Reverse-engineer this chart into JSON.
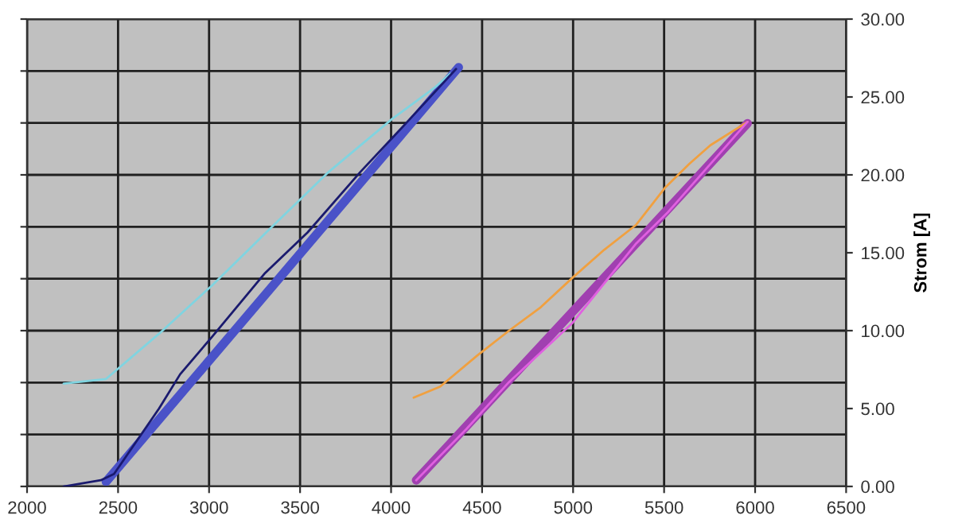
{
  "chart_data": {
    "type": "line",
    "ylabel": "Strom [A]",
    "xlim": [
      2000,
      6500
    ],
    "xticks": [
      2000,
      2500,
      3000,
      3500,
      4000,
      4500,
      5000,
      5500,
      6000,
      6500
    ],
    "ylim": [
      0,
      30
    ],
    "yticks": [
      {
        "value": 0,
        "label": "0.00"
      },
      {
        "value": 5,
        "label": "5.00"
      },
      {
        "value": 10,
        "label": "10.00"
      },
      {
        "value": 15,
        "label": "15.00"
      },
      {
        "value": 20,
        "label": "20.00"
      },
      {
        "value": 25,
        "label": "25.00"
      },
      {
        "value": 30,
        "label": "30.00"
      }
    ],
    "grid": true,
    "marker": "none",
    "line_style": "solid",
    "series": [
      {
        "color": "#80d4e0",
        "x": [
          2201,
          2434,
          2725,
          3016,
          3366,
          3658,
          4007,
          4240,
          4325
        ],
        "values": [
          6.6,
          6.9,
          9.8,
          12.9,
          16.9,
          20.2,
          23.6,
          25.6,
          26.5
        ]
      },
      {
        "color": "#1a1a6e",
        "x": [
          2201,
          2405,
          2478,
          2725,
          2841,
          3016,
          3308,
          3541,
          3832,
          4065,
          4357
        ],
        "values": [
          0,
          0.4,
          0.8,
          5.0,
          7.2,
          9.6,
          13.7,
          16.3,
          20.2,
          23.1,
          26.8
        ]
      },
      {
        "color": "#4a52c8",
        "x": [
          2434,
          4371
        ],
        "values": [
          0.3,
          26.9
        ]
      },
      {
        "color": "#f0a040",
        "x": [
          4124,
          4269,
          4473,
          4648,
          4822,
          4997,
          5172,
          5347,
          5507,
          5638,
          5754,
          5958
        ],
        "values": [
          5.7,
          6.4,
          8.4,
          10.0,
          11.5,
          13.4,
          15.2,
          16.8,
          19.2,
          20.7,
          21.9,
          23.4
        ]
      },
      {
        "color": "#e060e0",
        "x": [
          4138,
          4415,
          4648,
          4997,
          5347,
          5521,
          5958
        ],
        "values": [
          0.4,
          3.7,
          6.7,
          10.5,
          15.6,
          17.6,
          23.4
        ]
      },
      {
        "color": "#a040b0",
        "x": [
          4138,
          5958
        ],
        "values": [
          0.4,
          23.3
        ]
      }
    ]
  }
}
